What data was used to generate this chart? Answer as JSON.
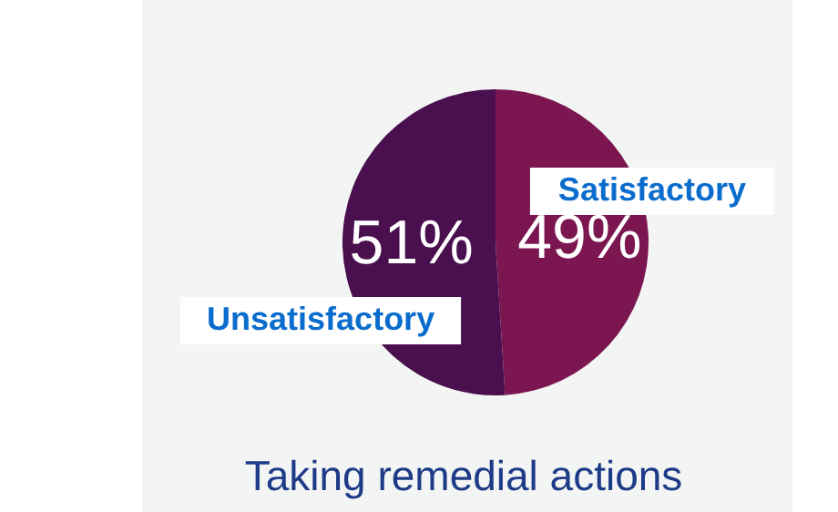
{
  "chart_data": {
    "type": "pie",
    "title": "Taking remedial actions",
    "categories": [
      "Satisfactory",
      "Unsatisfactory"
    ],
    "values": [
      49,
      51
    ],
    "colors": [
      "#7b1650",
      "#4a0f4f"
    ],
    "value_labels": [
      "49%",
      "51%"
    ],
    "legend": false
  }
}
